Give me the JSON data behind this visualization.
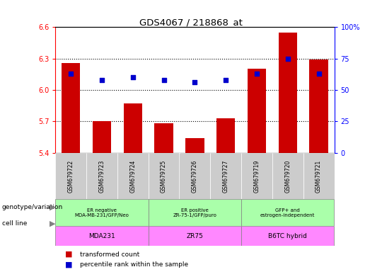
{
  "title": "GDS4067 / 218868_at",
  "samples": [
    "GSM679722",
    "GSM679723",
    "GSM679724",
    "GSM679725",
    "GSM679726",
    "GSM679727",
    "GSM679719",
    "GSM679720",
    "GSM679721"
  ],
  "bar_values": [
    6.26,
    5.7,
    5.87,
    5.68,
    5.54,
    5.73,
    6.2,
    6.55,
    6.29
  ],
  "dot_values": [
    63,
    58,
    60,
    58,
    56,
    58,
    63,
    75,
    63
  ],
  "ylim_left": [
    5.4,
    6.6
  ],
  "ylim_right": [
    0,
    100
  ],
  "yticks_left": [
    5.4,
    5.7,
    6.0,
    6.3,
    6.6
  ],
  "yticks_right": [
    0,
    25,
    50,
    75,
    100
  ],
  "hlines": [
    5.7,
    6.0,
    6.3
  ],
  "bar_color": "#cc0000",
  "dot_color": "#0000cc",
  "genotype_groups": [
    {
      "label": "ER negative\nMDA-MB-231/GFP/Neo",
      "start": 0,
      "end": 3
    },
    {
      "label": "ER positive\nZR-75-1/GFP/puro",
      "start": 3,
      "end": 6
    },
    {
      "label": "GFP+ and\nestrogen-independent",
      "start": 6,
      "end": 9
    }
  ],
  "cell_line_groups": [
    {
      "label": "MDA231",
      "start": 0,
      "end": 3
    },
    {
      "label": "ZR75",
      "start": 3,
      "end": 6
    },
    {
      "label": "B6TC hybrid",
      "start": 6,
      "end": 9
    }
  ],
  "genotype_color": "#aaffaa",
  "cell_line_color": "#ff88ff",
  "sample_box_color": "#cccccc",
  "genotype_label": "genotype/variation",
  "cell_line_label": "cell line",
  "legend_bar": "transformed count",
  "legend_dot": "percentile rank within the sample",
  "bg_color": "#ffffff"
}
